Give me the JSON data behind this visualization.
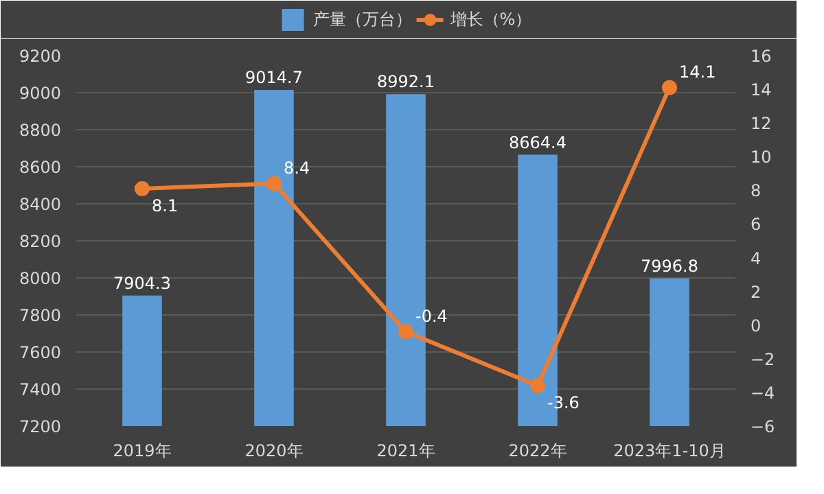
{
  "chart_data": {
    "type": "bar",
    "categories": [
      "2019年",
      "2020年",
      "2021年",
      "2022年",
      "2023年1-10月"
    ],
    "series": [
      {
        "name": "产量（万台）",
        "color": "#5b9bd5",
        "values": [
          7904.3,
          9014.7,
          8992.1,
          8664.4,
          7996.8
        ]
      },
      {
        "name": "增长（%）",
        "type": "line",
        "axis": "y2",
        "color": "#ed7d31",
        "marker": "circle",
        "values": [
          8.1,
          8.4,
          -0.4,
          -3.6,
          14.1
        ]
      }
    ],
    "ylim": [
      7200,
      9200
    ],
    "yticks": [
      7200,
      7400,
      7600,
      7800,
      8000,
      8200,
      8400,
      8600,
      8800,
      9000,
      9200
    ],
    "y2lim": [
      -6,
      16
    ],
    "y2ticks": [
      -6,
      -4,
      -2,
      0,
      2,
      4,
      6,
      8,
      10,
      12,
      14,
      16
    ],
    "grid": "y",
    "legend": "top",
    "data_labels": true
  }
}
